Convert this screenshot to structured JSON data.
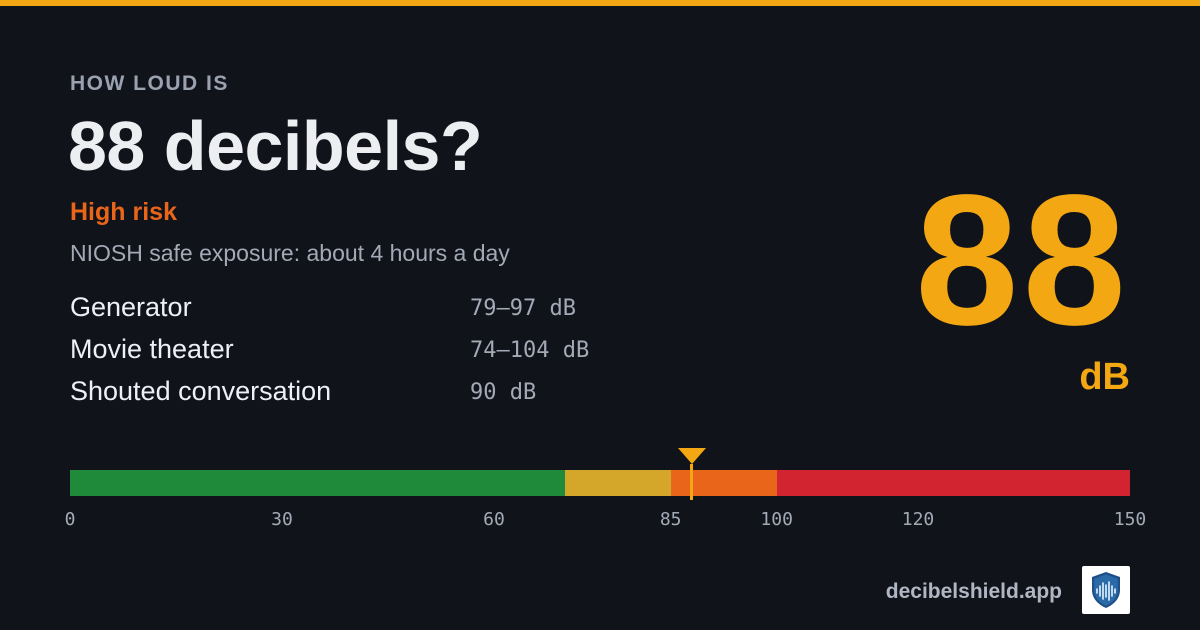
{
  "eyebrow": "HOW LOUD IS",
  "headline": "88 decibels?",
  "risk": {
    "label": "High risk",
    "color": "#e8651a"
  },
  "exposure": "NIOSH safe exposure: about 4 hours a day",
  "examples": [
    {
      "name": "Generator",
      "range": "79–97 dB"
    },
    {
      "name": "Movie theater",
      "range": "74–104 dB"
    },
    {
      "name": "Shouted conversation",
      "range": "90 dB"
    }
  ],
  "big_value": "88",
  "big_unit": "dB",
  "gauge": {
    "min": 0,
    "max": 150,
    "value": 88,
    "segments": [
      {
        "from": 0,
        "to": 70,
        "color": "#1f8a3a"
      },
      {
        "from": 70,
        "to": 85,
        "color": "#d4a62a"
      },
      {
        "from": 85,
        "to": 100,
        "color": "#e8651a"
      },
      {
        "from": 100,
        "to": 150,
        "color": "#d12330"
      }
    ],
    "ticks": [
      "0",
      "30",
      "60",
      "85",
      "100",
      "120",
      "150"
    ]
  },
  "site": "decibelshield.app",
  "logo_icon": "shield-soundwave-icon",
  "colors": {
    "accent": "#f3a712",
    "background": "#10131a"
  }
}
